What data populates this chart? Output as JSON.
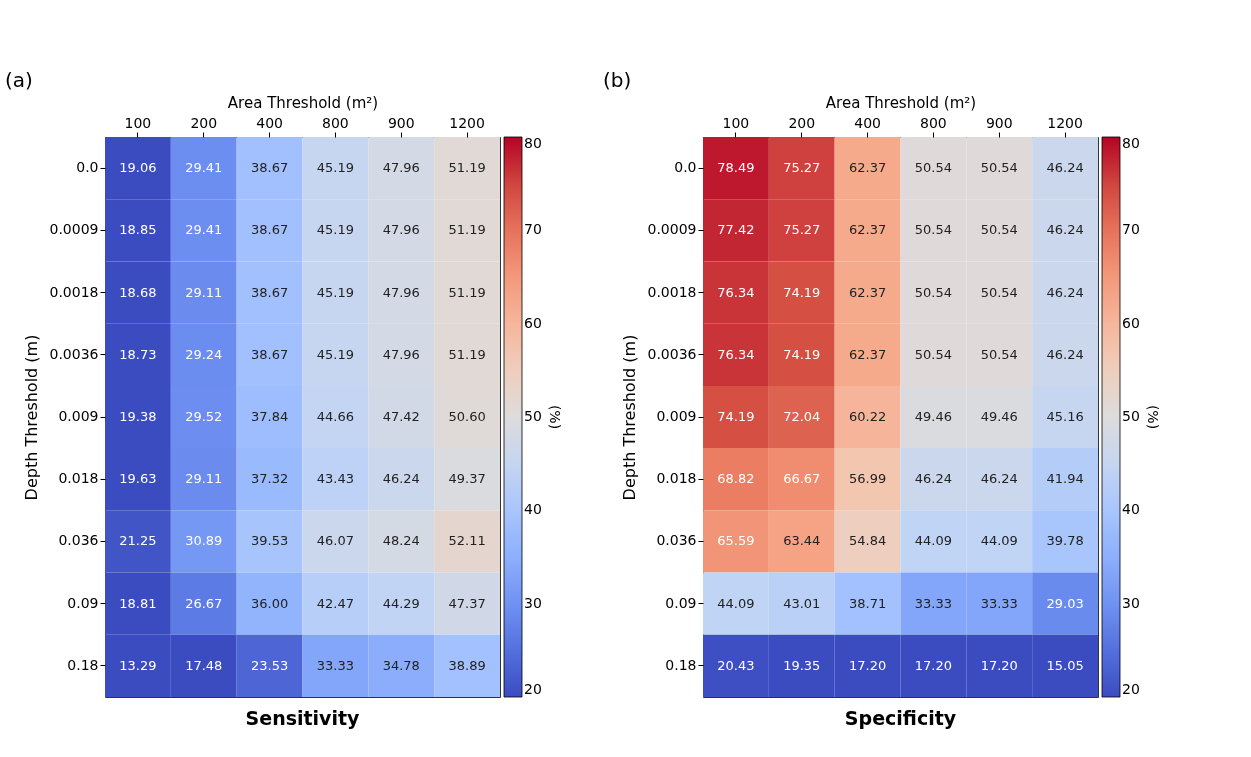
{
  "chart_data": [
    {
      "type": "heatmap",
      "title": "Sensitivity",
      "xlabel": "Area Threshold (m²)",
      "ylabel": "Depth Threshold (m)",
      "clabel": "(%)",
      "annotations": [
        "(a)"
      ],
      "clim": [
        20,
        80
      ],
      "cticks": [
        20,
        30,
        40,
        50,
        60,
        70,
        80
      ],
      "categories": [
        "100",
        "200",
        "400",
        "800",
        "900",
        "1200"
      ],
      "y_categories": [
        "0.0",
        "0.0009",
        "0.0018",
        "0.0036",
        "0.009",
        "0.018",
        "0.036",
        "0.09",
        "0.18"
      ],
      "cells": [
        [
          19.06,
          29.41,
          38.67,
          45.19,
          47.96,
          51.19
        ],
        [
          18.85,
          29.41,
          38.67,
          45.19,
          47.96,
          51.19
        ],
        [
          18.68,
          29.11,
          38.67,
          45.19,
          47.96,
          51.19
        ],
        [
          18.73,
          29.24,
          38.67,
          45.19,
          47.96,
          51.19
        ],
        [
          19.38,
          29.52,
          37.84,
          44.66,
          47.42,
          50.6
        ],
        [
          19.63,
          29.11,
          37.32,
          43.43,
          46.24,
          49.37
        ],
        [
          21.25,
          30.89,
          39.53,
          46.07,
          48.24,
          52.11
        ],
        [
          18.81,
          26.67,
          36.0,
          42.47,
          44.29,
          47.37
        ],
        [
          13.29,
          17.48,
          23.53,
          33.33,
          34.78,
          38.89
        ]
      ],
      "cell_labels": [
        [
          "19.06",
          "29.41",
          "38.67",
          "45.19",
          "47.96",
          "51.19"
        ],
        [
          "18.85",
          "29.41",
          "38.67",
          "45.19",
          "47.96",
          "51.19"
        ],
        [
          "18.68",
          "29.11",
          "38.67",
          "45.19",
          "47.96",
          "51.19"
        ],
        [
          "18.73",
          "29.24",
          "38.67",
          "45.19",
          "47.96",
          "51.19"
        ],
        [
          "19.38",
          "29.52",
          "37.84",
          "44.66",
          "47.42",
          "50.60"
        ],
        [
          "19.63",
          "29.11",
          "37.32",
          "43.43",
          "46.24",
          "49.37"
        ],
        [
          "21.25",
          "30.89",
          "39.53",
          "46.07",
          "48.24",
          "52.11"
        ],
        [
          "18.81",
          "26.67",
          "36.00",
          "42.47",
          "44.29",
          "47.37"
        ],
        [
          "13.29",
          "17.48",
          "23.53",
          "33.33",
          "34.78",
          "38.89"
        ]
      ]
    },
    {
      "type": "heatmap",
      "title": "Specificity",
      "xlabel": "Area Threshold (m²)",
      "ylabel": "Depth Threshold (m)",
      "clabel": "(%)",
      "annotations": [
        "(b)"
      ],
      "clim": [
        20,
        80
      ],
      "cticks": [
        20,
        30,
        40,
        50,
        60,
        70,
        80
      ],
      "categories": [
        "100",
        "200",
        "400",
        "800",
        "900",
        "1200"
      ],
      "y_categories": [
        "0.0",
        "0.0009",
        "0.0018",
        "0.0036",
        "0.009",
        "0.018",
        "0.036",
        "0.09",
        "0.18"
      ],
      "cells": [
        [
          78.49,
          75.27,
          62.37,
          50.54,
          50.54,
          46.24
        ],
        [
          77.42,
          75.27,
          62.37,
          50.54,
          50.54,
          46.24
        ],
        [
          76.34,
          74.19,
          62.37,
          50.54,
          50.54,
          46.24
        ],
        [
          76.34,
          74.19,
          62.37,
          50.54,
          50.54,
          46.24
        ],
        [
          74.19,
          72.04,
          60.22,
          49.46,
          49.46,
          45.16
        ],
        [
          68.82,
          66.67,
          56.99,
          46.24,
          46.24,
          41.94
        ],
        [
          65.59,
          63.44,
          54.84,
          44.09,
          44.09,
          39.78
        ],
        [
          44.09,
          43.01,
          38.71,
          33.33,
          33.33,
          29.03
        ],
        [
          20.43,
          19.35,
          17.2,
          17.2,
          17.2,
          15.05
        ]
      ],
      "cell_labels": [
        [
          "78.49",
          "75.27",
          "62.37",
          "50.54",
          "50.54",
          "46.24"
        ],
        [
          "77.42",
          "75.27",
          "62.37",
          "50.54",
          "50.54",
          "46.24"
        ],
        [
          "76.34",
          "74.19",
          "62.37",
          "50.54",
          "50.54",
          "46.24"
        ],
        [
          "76.34",
          "74.19",
          "62.37",
          "50.54",
          "50.54",
          "46.24"
        ],
        [
          "74.19",
          "72.04",
          "60.22",
          "49.46",
          "49.46",
          "45.16"
        ],
        [
          "68.82",
          "66.67",
          "56.99",
          "46.24",
          "46.24",
          "41.94"
        ],
        [
          "65.59",
          "63.44",
          "54.84",
          "44.09",
          "44.09",
          "39.78"
        ],
        [
          "44.09",
          "43.01",
          "38.71",
          "33.33",
          "33.33",
          "29.03"
        ],
        [
          "20.43",
          "19.35",
          "17.20",
          "17.20",
          "17.20",
          "15.05"
        ]
      ]
    }
  ]
}
